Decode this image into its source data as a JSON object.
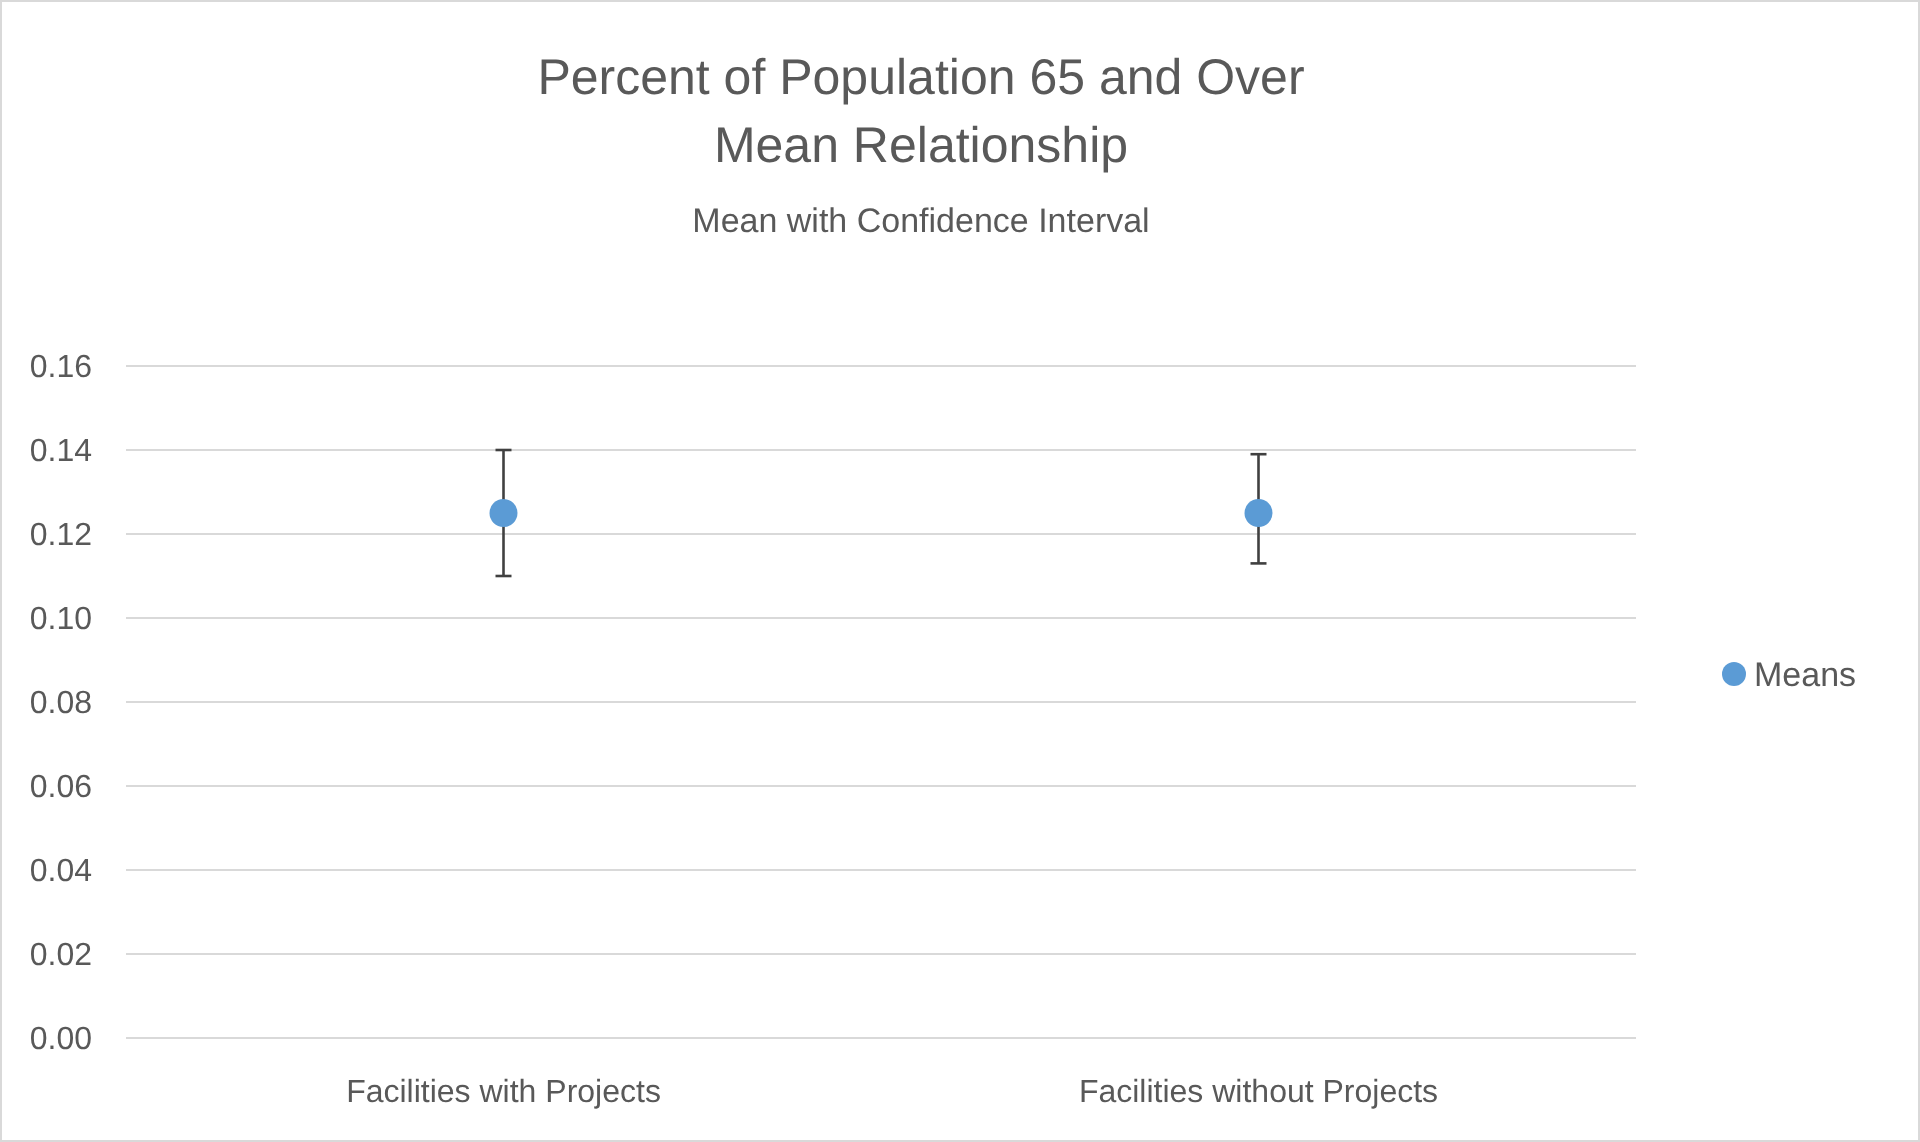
{
  "chart_data": {
    "type": "scatter",
    "title": "Percent of Population 65 and Over\nMean Relationship",
    "subtitle": "Mean with Confidence Interval",
    "categories": [
      "Facilities with Projects",
      "Facilities without Projects"
    ],
    "series": [
      {
        "name": "Means",
        "color": "#5b9bd5",
        "values": [
          0.125,
          0.125
        ],
        "errors": [
          [
            0.11,
            0.14
          ],
          [
            0.113,
            0.139
          ]
        ]
      }
    ],
    "ylim": [
      0,
      0.16
    ],
    "yticks": [
      {
        "value": 0,
        "label": "0.00"
      },
      {
        "value": 0.02,
        "label": "0.02"
      },
      {
        "value": 0.04,
        "label": "0.04"
      },
      {
        "value": 0.06,
        "label": "0.06"
      },
      {
        "value": 0.08,
        "label": "0.08"
      },
      {
        "value": 0.1,
        "label": "0.10"
      },
      {
        "value": 0.12,
        "label": "0.12"
      },
      {
        "value": 0.14,
        "label": "0.14"
      },
      {
        "value": 0.16,
        "label": "0.16"
      }
    ],
    "grid": "y",
    "legend": "right",
    "marker": "circle"
  }
}
